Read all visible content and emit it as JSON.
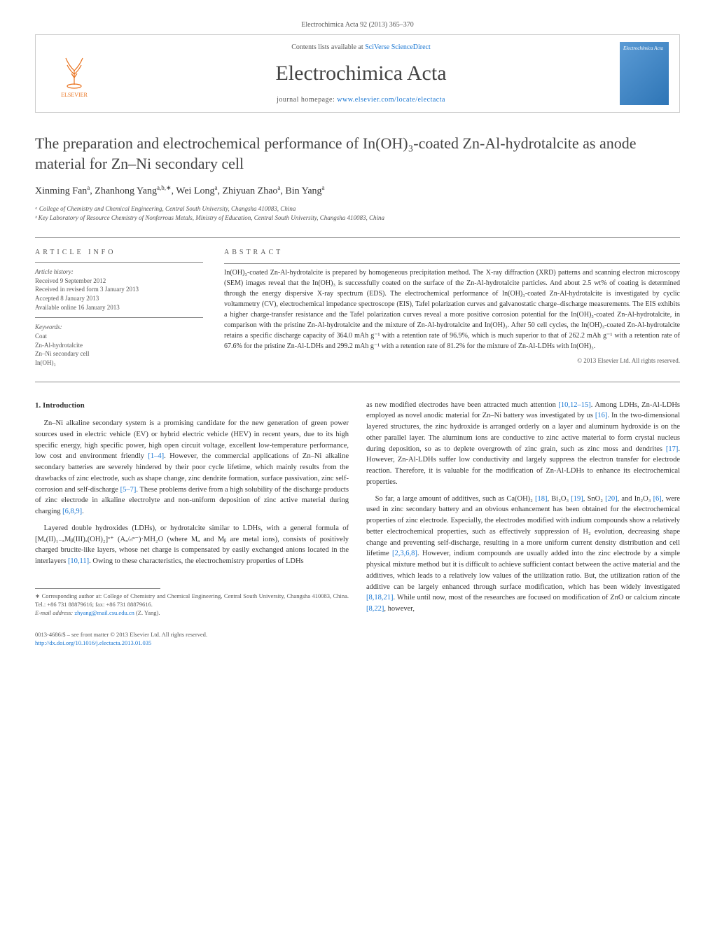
{
  "header": {
    "journal_ref": "Electrochimica Acta 92 (2013) 365–370",
    "contents_prefix": "Contents lists available at ",
    "contents_link": "SciVerse ScienceDirect",
    "journal_title": "Electrochimica Acta",
    "homepage_prefix": "journal homepage: ",
    "homepage_link": "www.elsevier.com/locate/electacta",
    "publisher": "ELSEVIER",
    "cover_text": "Electrochimica Acta"
  },
  "article": {
    "title": "The preparation and electrochemical performance of In(OH)₃-coated Zn-Al-hydrotalcite as anode material for Zn–Ni secondary cell",
    "authors_html": "Xinming Fan<sup>a</sup>, Zhanhong Yang<sup>a,b,∗</sup>, Wei Long<sup>a</sup>, Zhiyuan Zhao<sup>a</sup>, Bin Yang<sup>a</sup>",
    "affiliations": [
      "ᵃ College of Chemistry and Chemical Engineering, Central South University, Changsha 410083, China",
      "ᵇ Key Laboratory of Resource Chemistry of Nonferrous Metals, Ministry of Education, Central South University, Changsha 410083, China"
    ]
  },
  "info": {
    "header": "article info",
    "history_title": "Article history:",
    "history": [
      "Received 9 September 2012",
      "Received in revised form 3 January 2013",
      "Accepted 8 January 2013",
      "Available online 16 January 2013"
    ],
    "keywords_title": "Keywords:",
    "keywords": [
      "Coat",
      "Zn-Al-hydrotalcite",
      "Zn–Ni secondary cell",
      "In(OH)₃"
    ]
  },
  "abstract": {
    "header": "abstract",
    "text": "In(OH)₃-coated Zn-Al-hydrotalcite is prepared by homogeneous precipitation method. The X-ray diffraction (XRD) patterns and scanning electron microscopy (SEM) images reveal that the In(OH)₃ is successfully coated on the surface of the Zn-Al-hydrotalcite particles. And about 2.5 wt% of coating is determined through the energy dispersive X-ray spectrum (EDS). The electrochemical performance of In(OH)₃-coated Zn-Al-hydrotalcite is investigated by cyclic voltammetry (CV), electrochemical impedance spectroscope (EIS), Tafel polarization curves and galvanostatic charge–discharge measurements. The EIS exhibits a higher charge-transfer resistance and the Tafel polarization curves reveal a more positive corrosion potential for the In(OH)₃-coated Zn-Al-hydrotalcite, in comparison with the pristine Zn-Al-hydrotalcite and the mixture of Zn-Al-hydrotalcite and In(OH)₃. After 50 cell cycles, the In(OH)₃-coated Zn-Al-hydrotalcite retains a specific discharge capacity of 364.0 mAh g⁻¹ with a retention rate of 96.9%, which is much superior to that of 262.2 mAh g⁻¹ with a retention rate of 67.6% for the pristine Zn-Al-LDHs and 299.2 mAh g⁻¹ with a retention rate of 81.2% for the mixture of Zn-Al-LDHs with In(OH)₃.",
    "copyright": "© 2013 Elsevier Ltd. All rights reserved."
  },
  "body": {
    "section_heading": "1. Introduction",
    "left_paragraphs": [
      "Zn–Ni alkaline secondary system is a promising candidate for the new generation of green power sources used in electric vehicle (EV) or hybrid electric vehicle (HEV) in recent years, due to its high specific energy, high specific power, high open circuit voltage, excellent low-temperature performance, low cost and environment friendly [1–4]. However, the commercial applications of Zn–Ni alkaline secondary batteries are severely hindered by their poor cycle lifetime, which mainly results from the drawbacks of zinc electrode, such as shape change, zinc dendrite formation, surface passivation, zinc self-corrosion and self-discharge [5–7]. These problems derive from a high solubility of the discharge products of zinc electrode in alkaline electrolyte and non-uniform deposition of zinc active material during charging [6,8,9].",
      "Layered double hydroxides (LDHs), or hydrotalcite similar to LDHs, with a general formula of [Mₐ(II)₁₋ₓMᵦ(III)ₓ(OH)₂]ˣ⁺ (Aₓ/ₙⁿ⁻)·MH₂O (where Mₐ and Mᵦ are metal ions), consists of positively charged brucite-like layers, whose net charge is compensated by easily exchanged anions located in the interlayers [10,11]. Owing to these characteristics, the electrochemistry properties of LDHs"
    ],
    "right_paragraphs": [
      "as new modified electrodes have been attracted much attention [10,12–15]. Among LDHs, Zn-Al-LDHs employed as novel anodic material for Zn–Ni battery was investigated by us [16]. In the two-dimensional layered structures, the zinc hydroxide is arranged orderly on a layer and aluminum hydroxide is on the other parallel layer. The aluminum ions are conductive to zinc active material to form crystal nucleus during deposition, so as to deplete overgrowth of zinc grain, such as zinc moss and dendrites [17]. However, Zn-Al-LDHs suffer low conductivity and largely suppress the electron transfer for electrode reaction. Therefore, it is valuable for the modification of Zn-Al-LDHs to enhance its electrochemical properties.",
      "So far, a large amount of additives, such as Ca(OH)₂ [18], Bi₂O₃ [19], SnO₂ [20], and In₂O₃ [6], were used in zinc secondary battery and an obvious enhancement has been obtained for the electrochemical properties of zinc electrode. Especially, the electrodes modified with indium compounds show a relatively better electrochemical properties, such as effectively suppression of H₂ evolution, decreasing shape change and preventing self-discharge, resulting in a more uniform current density distribution and cell lifetime [2,3,6,8]. However, indium compounds are usually added into the zinc electrode by a simple physical mixture method but it is difficult to achieve sufficient contact between the active material and the additives, which leads to a relatively low values of the utilization ratio. But, the utilization ration of the additive can be largely enhanced through surface modification, which has been widely investigated [8,18,21]. While until now, most of the researches are focused on modification of ZnO or calcium zincate [8,22], however,"
    ]
  },
  "footnote": {
    "corresponding": "∗ Corresponding author at: College of Chemistry and Chemical Engineering, Central South University, Changsha 410083, China. Tel.: +86 731 88879616; fax: +86 731 88879616.",
    "email_label": "E-mail address: ",
    "email": "zhyang@mail.csu.edu.cn",
    "email_suffix": " (Z. Yang)."
  },
  "bottom": {
    "issn": "0013-4686/$ – see front matter © 2013 Elsevier Ltd. All rights reserved.",
    "doi": "http://dx.doi.org/10.1016/j.electacta.2013.01.035"
  },
  "colors": {
    "link": "#1976d2",
    "text": "#333333",
    "muted": "#555555",
    "border": "#cccccc",
    "elsevier_orange": "#e9711c",
    "cover_blue": "#2e75b6"
  }
}
